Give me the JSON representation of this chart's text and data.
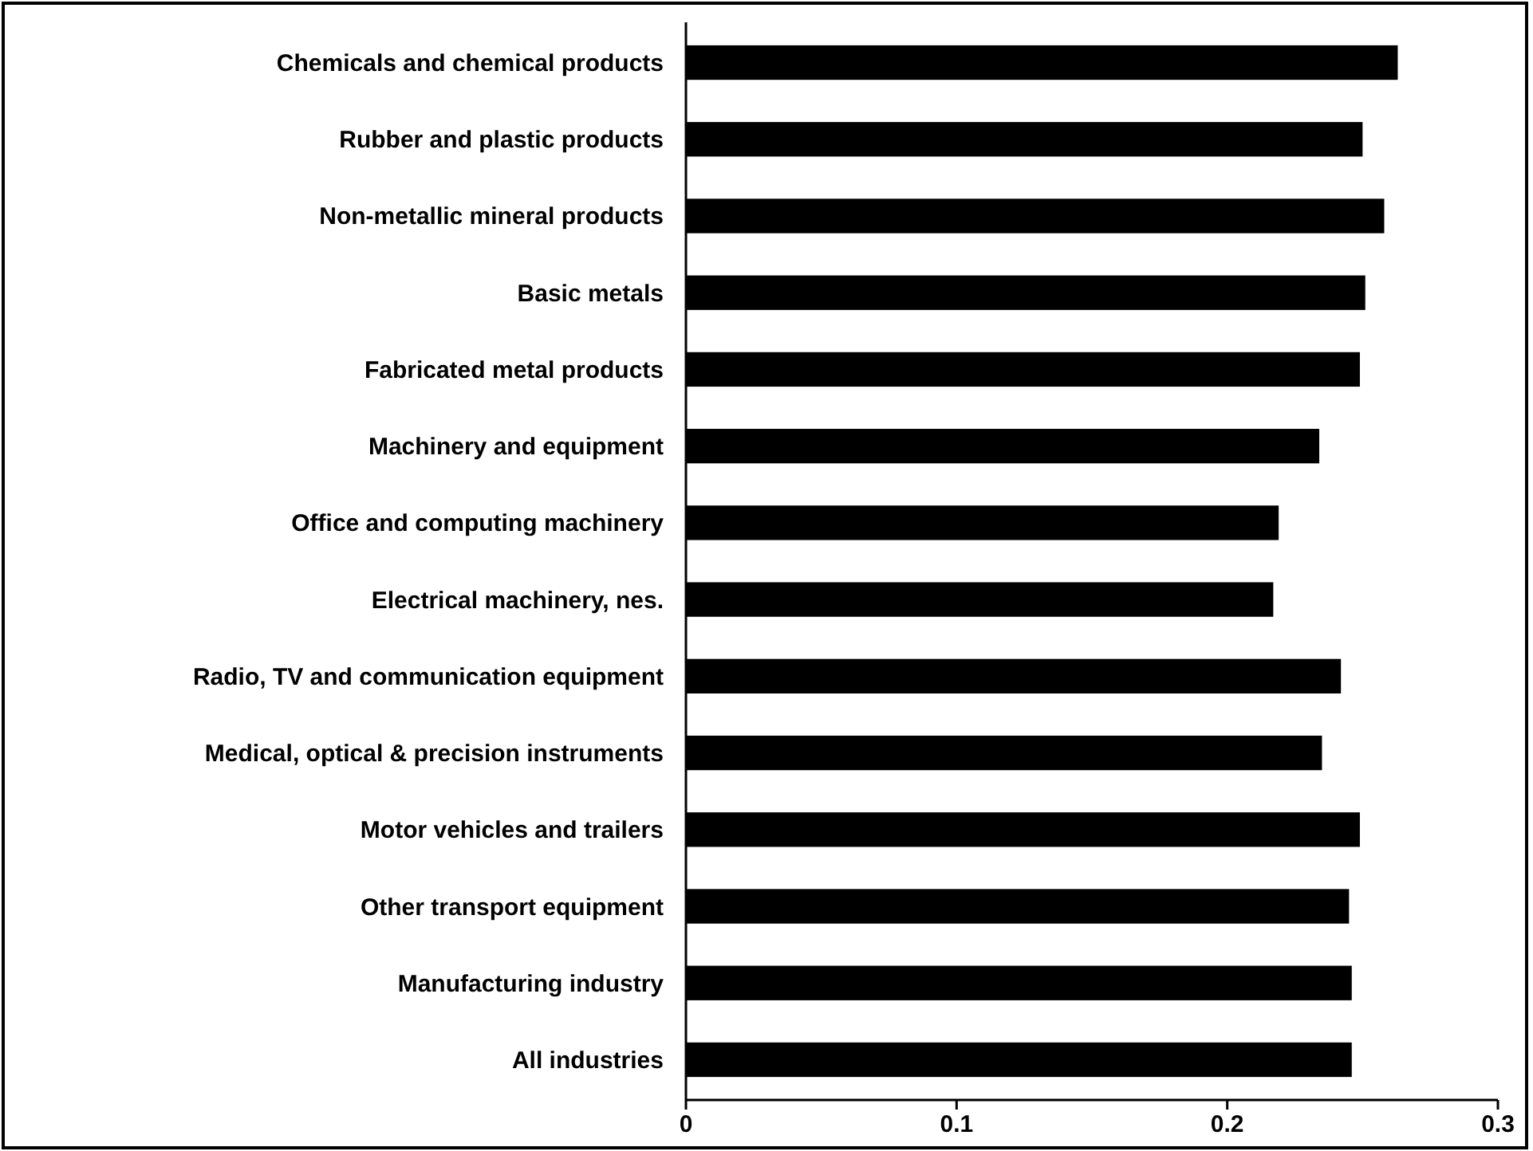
{
  "chart_data": {
    "type": "bar",
    "orientation": "horizontal",
    "categories": [
      "Chemicals and chemical products",
      "Rubber and plastic products",
      "Non-metallic mineral products",
      "Basic metals",
      "Fabricated metal products",
      "Machinery and equipment",
      "Office and computing machinery",
      "Electrical machinery, nes.",
      "Radio, TV and communication equipment",
      "Medical, optical & precision instruments",
      "Motor vehicles and trailers",
      "Other transport equipment",
      "Manufacturing industry",
      "All industries"
    ],
    "values": [
      0.263,
      0.25,
      0.258,
      0.251,
      0.249,
      0.234,
      0.219,
      0.217,
      0.242,
      0.235,
      0.249,
      0.245,
      0.246,
      0.246
    ],
    "color": "#000000",
    "xlim": [
      0,
      0.3
    ],
    "xticks": [
      0,
      0.1,
      0.2,
      0.3
    ],
    "grid": false
  }
}
